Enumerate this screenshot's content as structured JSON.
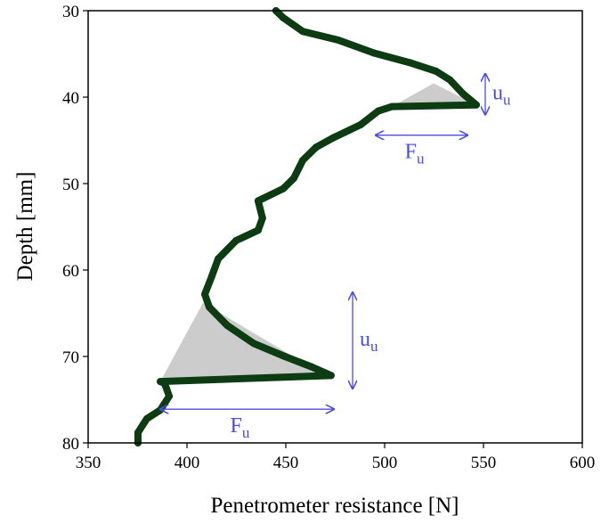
{
  "chart_data": {
    "type": "scatter",
    "xlabel": "Penetrometer resistance [N]",
    "ylabel": "Depth [mm]",
    "xlim": [
      350,
      600
    ],
    "xticks": [
      350,
      400,
      450,
      500,
      550,
      600
    ],
    "ylim": [
      30,
      80
    ],
    "yticks": [
      30,
      40,
      50,
      60,
      70,
      80
    ],
    "y_inverted": true,
    "series": [
      {
        "color": "#0d3b12",
        "x": [
          445,
          448.6,
          458.6,
          476.6,
          494.6,
          512.6,
          526,
          533,
          539.6,
          546.4,
          503.6,
          496.8,
          487.8,
          474,
          465.3,
          458.6,
          454,
          448.6,
          436,
          438.2,
          436,
          424.8,
          415.8,
          412.6,
          409,
          411.3,
          420.3,
          433.8,
          449.5,
          463,
          472.9,
          386.5,
          388.7,
          391,
          386.5,
          379.7,
          375.2,
          375.2
        ],
        "values": [
          30,
          30.8,
          32.4,
          33.4,
          34.9,
          36.0,
          37.0,
          38.0,
          39.6,
          40.9,
          41.1,
          41.6,
          43.2,
          44.7,
          45.8,
          47.3,
          49.4,
          50.6,
          52.0,
          54.0,
          55.4,
          56.6,
          58.7,
          60.7,
          62.8,
          64.3,
          66.4,
          68.5,
          70.0,
          71.2,
          72.2,
          72.9,
          73.1,
          74.6,
          76.2,
          77.2,
          78.8,
          80
        ]
      }
    ],
    "shaded_regions": [
      {
        "color": "#cccccc",
        "x": [
          503.6,
          524.8,
          546.4,
          503.6
        ],
        "y": [
          41.1,
          38.4,
          40.9,
          41.1
        ]
      },
      {
        "color": "#cccccc",
        "x": [
          408.1,
          386.5,
          472.9
        ],
        "y": [
          63.8,
          72.9,
          72.6
        ]
      }
    ],
    "annotations": [
      {
        "text": "u",
        "subscript": "u",
        "direction": "vertical",
        "x": 550.9,
        "y": [
          37.3,
          42.0
        ],
        "color": "#4b4be6"
      },
      {
        "text": "F",
        "subscript": "u",
        "direction": "horizontal",
        "x": [
          495.5,
          541.9
        ],
        "y": 44.4,
        "color": "#4b4be6"
      },
      {
        "text": "u",
        "subscript": "u",
        "direction": "vertical",
        "x": 483.8,
        "y": [
          62.6,
          73.7
        ],
        "color": "#4b4be6"
      },
      {
        "text": "F",
        "subscript": "u",
        "direction": "horizontal",
        "x": [
          386.5,
          474.3
        ],
        "y": 76.1,
        "color": "#4b4be6"
      }
    ]
  }
}
